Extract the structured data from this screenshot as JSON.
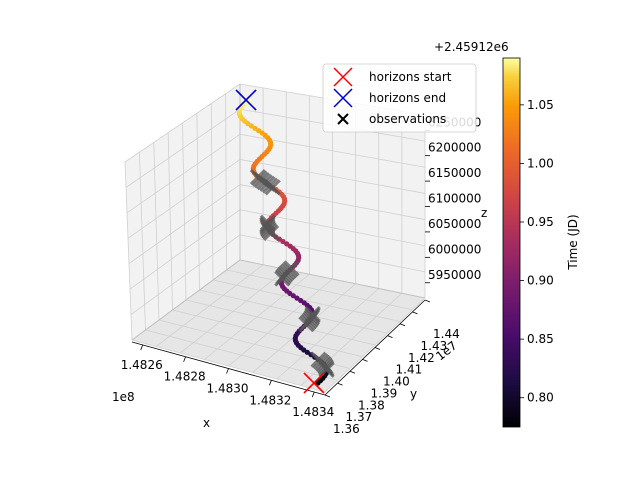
{
  "chart_data": {
    "type": "scatter",
    "projection": "3d",
    "title": "",
    "axes": {
      "x": {
        "label": "x",
        "offset_label": "1e8",
        "ticks": [
          "1.4826",
          "1.4828",
          "1.4830",
          "1.4832",
          "1.4834"
        ],
        "range": [
          1.48255,
          1.48345
        ]
      },
      "y": {
        "label": "y",
        "offset_label": "1e7",
        "ticks": [
          "1.36",
          "1.37",
          "1.38",
          "1.39",
          "1.40",
          "1.41",
          "1.42",
          "1.43",
          "1.44"
        ],
        "range": [
          1.36,
          1.44
        ]
      },
      "z": {
        "label": "z",
        "ticks": [
          "5950000",
          "6000000",
          "6050000",
          "6100000",
          "6150000",
          "6200000",
          "6250000"
        ],
        "range": [
          5920000,
          6280000
        ]
      }
    },
    "grid": true,
    "colorbar": {
      "label": "Time (JD)",
      "offset_label": "+2.45912e6",
      "ticks": [
        "0.80",
        "0.85",
        "0.90",
        "0.95",
        "1.00",
        "1.05"
      ],
      "range": [
        0.775,
        1.09
      ],
      "colormap": "inferno"
    },
    "legend": {
      "position": "top-right",
      "entries": [
        {
          "label": "horizons start",
          "marker": "x",
          "color": "#ff0000"
        },
        {
          "label": "horizons end",
          "marker": "x",
          "color": "#0000cc"
        },
        {
          "label": "observations",
          "marker": "x",
          "color": "#000000"
        }
      ]
    },
    "series": [
      {
        "name": "horizons start",
        "marker": "x",
        "color": "#ff0000",
        "points": [
          {
            "t": 0.78
          }
        ]
      },
      {
        "name": "horizons end",
        "marker": "x",
        "color": "#0000cc",
        "points": [
          {
            "t": 1.09
          }
        ]
      },
      {
        "name": "observations",
        "marker": "x",
        "color": "#000000",
        "groups_t": [
          0.8,
          0.85,
          0.9,
          0.95,
          1.0
        ]
      },
      {
        "name": "track",
        "marker": "o",
        "colormap": "inferno",
        "t_range": [
          0.78,
          1.09
        ]
      }
    ]
  }
}
